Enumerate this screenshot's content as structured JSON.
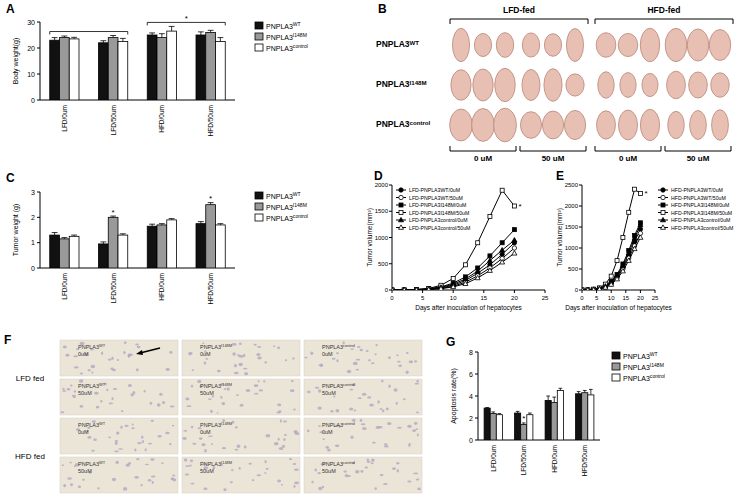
{
  "chart_data": [
    {
      "type": "bar",
      "title": "A",
      "y_label": "Body weight(g)",
      "categories": [
        "LFD/0um",
        "LFD/50um",
        "HFD/0um",
        "HFD/50um"
      ],
      "series": [
        {
          "name": "PNPLA3WT",
          "color": "#111111",
          "values": [
            23,
            22,
            25,
            25
          ],
          "errors": [
            1,
            0.8,
            0.8,
            1.2
          ]
        },
        {
          "name": "PNPLA3I148M",
          "color": "#999999",
          "values": [
            24,
            24,
            24,
            26
          ],
          "errors": [
            0.6,
            0.8,
            1.5,
            0.8
          ]
        },
        {
          "name": "PNPLA3control",
          "color": "#ffffff",
          "values": [
            23.5,
            22.5,
            26.5,
            22.5
          ],
          "errors": [
            0.6,
            1.2,
            1.8,
            1.5
          ]
        }
      ],
      "ylim": [
        0,
        30
      ],
      "yticks": [
        0,
        10,
        20,
        30
      ],
      "legend": "right",
      "annotations": [
        {
          "from": 0,
          "to": 1
        },
        {
          "from": 2,
          "to": 3,
          "text": "*"
        }
      ]
    },
    {
      "type": "bar",
      "title": "C",
      "y_label": "Tumor weight (g)",
      "categories": [
        "LFD/0um",
        "LFD/50um",
        "HFD/0um",
        "HFD/50um"
      ],
      "series": [
        {
          "name": "PNPLA3WT",
          "color": "#111111",
          "values": [
            1.3,
            0.95,
            1.65,
            1.75
          ],
          "errors": [
            0.1,
            0.08,
            0.08,
            0.08
          ]
        },
        {
          "name": "PNPLA3I148M",
          "color": "#999999",
          "values": [
            1.15,
            2.0,
            1.7,
            2.5
          ],
          "errors": [
            0.05,
            0.05,
            0.05,
            0.08
          ]
        },
        {
          "name": "PNPLA3control",
          "color": "#ffffff",
          "values": [
            1.25,
            1.3,
            1.9,
            1.7
          ],
          "errors": [
            0.05,
            0.05,
            0.05,
            0.05
          ]
        }
      ],
      "ylim": [
        0,
        3
      ],
      "yticks": [
        0,
        1,
        2,
        3
      ],
      "legend": "right",
      "annotations": [
        {
          "text": "*",
          "category": 1,
          "series": 1
        },
        {
          "text": "*",
          "category": 3,
          "series": 1
        }
      ]
    },
    {
      "type": "line",
      "title": "D",
      "x_label": "Days after inoculation of hepatocytes",
      "y_label": "Tumor volume(mm³)",
      "x": [
        0,
        2,
        4,
        6,
        8,
        10,
        12,
        14,
        16,
        18,
        20
      ],
      "series": [
        {
          "name": "LFD-PNPLA3WT/0uM",
          "color": "#000000",
          "marker": "circle",
          "values": [
            0,
            0,
            5,
            15,
            40,
            90,
            180,
            320,
            480,
            680,
            900
          ]
        },
        {
          "name": "LFD-PNPLA3WT/50uM",
          "color": "#000000",
          "marker": "open-circle",
          "values": [
            0,
            0,
            5,
            10,
            30,
            70,
            150,
            270,
            420,
            600,
            800
          ]
        },
        {
          "name": "LFD-PNPLA3I148M/0uM",
          "color": "#000000",
          "marker": "square",
          "values": [
            0,
            0,
            10,
            25,
            60,
            130,
            250,
            420,
            650,
            900,
            1150
          ]
        },
        {
          "name": "LFD-PNPLA3I148M/50uM",
          "color": "#000000",
          "marker": "open-square",
          "values": [
            0,
            0,
            10,
            30,
            90,
            220,
            480,
            900,
            1400,
            1900,
            1600
          ]
        },
        {
          "name": "LFD-PNPLA3control/0uM",
          "color": "#000000",
          "marker": "triangle",
          "values": [
            0,
            0,
            5,
            20,
            50,
            110,
            210,
            360,
            560,
            760,
            950
          ]
        },
        {
          "name": "LFD-PNPLA3control/50uM",
          "color": "#000000",
          "marker": "open-triangle",
          "values": [
            0,
            0,
            0,
            10,
            25,
            60,
            120,
            230,
            370,
            530,
            700
          ]
        }
      ],
      "xlim": [
        0,
        25
      ],
      "xticks": [
        0,
        5,
        10,
        15,
        20,
        25
      ],
      "ylim": [
        0,
        2000
      ],
      "yticks": [
        0,
        500,
        1000,
        1500,
        2000
      ],
      "legend": "upper left",
      "annotations": [
        {
          "text": "*",
          "series": 3,
          "index": 10
        }
      ]
    },
    {
      "type": "line",
      "title": "E",
      "x_label": "Days after inoculation of hepatocytes",
      "y_label": "Tumor volume(mm³)",
      "x": [
        0,
        2,
        4,
        6,
        8,
        10,
        12,
        14,
        16,
        18,
        20
      ],
      "series": [
        {
          "name": "HFD-PNPLA3WT/0uM",
          "color": "#000000",
          "marker": "circle",
          "values": [
            0,
            0,
            10,
            30,
            80,
            170,
            320,
            540,
            820,
            1150,
            1450
          ]
        },
        {
          "name": "HFD-PNPLA3WT/50uM",
          "color": "#000000",
          "marker": "open-circle",
          "values": [
            0,
            0,
            10,
            25,
            70,
            150,
            290,
            500,
            760,
            1050,
            1350
          ]
        },
        {
          "name": "HFD-PNPLA3I148M/0uM",
          "color": "#000000",
          "marker": "square",
          "values": [
            0,
            0,
            15,
            40,
            100,
            200,
            370,
            620,
            940,
            1300,
            1600
          ]
        },
        {
          "name": "HFD-PNPLA3I148M/50uM",
          "color": "#000000",
          "marker": "open-square",
          "values": [
            0,
            0,
            20,
            50,
            140,
            330,
            700,
            1250,
            1850,
            2400,
            2300
          ]
        },
        {
          "name": "HFD-PNPLA3control/0uM",
          "color": "#000000",
          "marker": "triangle",
          "values": [
            0,
            0,
            10,
            35,
            90,
            190,
            350,
            580,
            880,
            1230,
            1550
          ]
        },
        {
          "name": "HFD-PNPLA3control/50uM",
          "color": "#000000",
          "marker": "open-triangle",
          "values": [
            0,
            0,
            5,
            20,
            60,
            130,
            260,
            450,
            700,
            980,
            1250
          ]
        }
      ],
      "xlim": [
        0,
        25
      ],
      "xticks": [
        0,
        5,
        10,
        15,
        20,
        25
      ],
      "ylim": [
        0,
        2500
      ],
      "yticks": [
        0,
        500,
        1000,
        1500,
        2000,
        2500
      ],
      "legend": "right",
      "annotations": [
        {
          "text": "*",
          "series": 3,
          "index": 10
        }
      ]
    },
    {
      "type": "bar",
      "title": "G",
      "y_label": "Apoptosis rate(%)",
      "categories": [
        "LFD/0um",
        "LFD/50um",
        "HFD/0um",
        "HFD/50um"
      ],
      "series": [
        {
          "name": "PNPLA3WT",
          "color": "#111111",
          "values": [
            2.9,
            2.45,
            3.6,
            4.2
          ],
          "errors": [
            0.05,
            0.15,
            0.4,
            0.2
          ]
        },
        {
          "name": "PNPLA3I148M",
          "color": "#999999",
          "values": [
            2.4,
            1.4,
            3.4,
            4.3
          ],
          "errors": [
            0.15,
            0.15,
            0.5,
            0.2
          ]
        },
        {
          "name": "PNPLA3control",
          "color": "#ffffff",
          "values": [
            2.3,
            2.3,
            4.5,
            4.1
          ],
          "errors": [
            0.1,
            0.15,
            0.2,
            0.5
          ]
        }
      ],
      "ylim": [
        0,
        8
      ],
      "yticks": [
        0,
        2,
        4,
        6,
        8
      ],
      "legend": "right",
      "annotations": [
        {
          "text": "*",
          "category": 1,
          "series": 1
        }
      ]
    }
  ],
  "photo_panel": {
    "title": "B",
    "groups": [
      "LFD-fed",
      "HFD-fed"
    ],
    "rows": [
      "PNPLA3WT",
      "PNPLA3I148M",
      "PNPLA3control"
    ],
    "doses": [
      "0 uM",
      "50 uM",
      "0 uM",
      "50 uM"
    ]
  },
  "micrograph_panel": {
    "title": "F",
    "row_groups": [
      "LFD fed",
      "HFD fed"
    ],
    "cells": [
      [
        [
          "PNPLA3WT",
          "0uM"
        ],
        [
          "PNPLA3I148M",
          "0uM"
        ],
        [
          "PNPLA3control",
          "0uM"
        ]
      ],
      [
        [
          "PNPLA3WT",
          "50uM"
        ],
        [
          "PNPLA3I148M",
          "50uM"
        ],
        [
          "PNPLA3control",
          "50uM"
        ]
      ],
      [
        [
          "PNPLA3WT",
          "0uM"
        ],
        [
          "PNPLA3I148M",
          "0uM"
        ],
        [
          "PNPLA3control",
          "0uM"
        ]
      ],
      [
        [
          "PNPLA3WT",
          "50uM"
        ],
        [
          "PNPLA3I148M",
          "50uM"
        ],
        [
          "PNPLA3control",
          "50uM"
        ]
      ]
    ]
  }
}
